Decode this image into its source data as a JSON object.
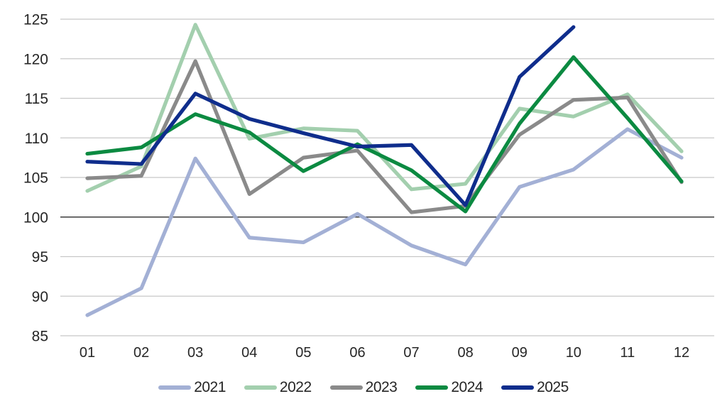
{
  "chart_data": {
    "type": "line",
    "title": "",
    "xlabel": "",
    "ylabel": "",
    "x_categories": [
      "01",
      "02",
      "03",
      "04",
      "05",
      "06",
      "07",
      "08",
      "09",
      "10",
      "11",
      "12"
    ],
    "y_ticks": [
      85,
      90,
      95,
      100,
      105,
      110,
      115,
      120,
      125
    ],
    "ylim": [
      85,
      125
    ],
    "baseline_value": 100,
    "grid": true,
    "grid_color": "#c8c8c8",
    "baseline_color": "#3d3d3d",
    "legend_position": "bottom",
    "series": [
      {
        "name": "2021",
        "color": "#a3b0d5",
        "values": [
          87.6,
          91.0,
          107.4,
          97.4,
          96.8,
          100.4,
          96.4,
          94.0,
          103.8,
          106.0,
          111.1,
          107.5
        ]
      },
      {
        "name": "2022",
        "color": "#a3cfae",
        "values": [
          103.3,
          106.4,
          124.3,
          109.9,
          111.2,
          110.9,
          103.5,
          104.2,
          113.7,
          112.7,
          115.5,
          108.3
        ]
      },
      {
        "name": "2023",
        "color": "#8a8a8a",
        "values": [
          104.9,
          105.2,
          119.7,
          102.9,
          107.5,
          108.4,
          100.6,
          101.4,
          110.4,
          114.8,
          115.1,
          104.4
        ]
      },
      {
        "name": "2024",
        "color": "#0b8a41",
        "values": [
          108.0,
          108.8,
          113.0,
          110.7,
          105.8,
          109.2,
          105.9,
          100.7,
          111.8,
          120.2,
          112.5,
          104.5
        ]
      },
      {
        "name": "2025",
        "color": "#0f2d8c",
        "values": [
          107.0,
          106.7,
          115.6,
          112.4,
          110.6,
          108.9,
          109.1,
          101.5,
          117.7,
          124.0,
          null,
          null
        ]
      }
    ]
  }
}
